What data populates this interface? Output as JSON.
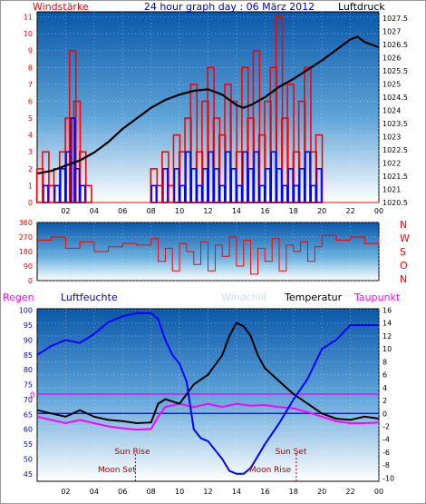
{
  "header": {
    "left_label": "Windstärke",
    "title": "24 hour graph day : 06 März 2012",
    "right_label": "Luftdruck"
  },
  "colors": {
    "wind": "#ff0000",
    "gust": "#0000ff",
    "pressure": "#000000",
    "direction": "#ff0000",
    "humidity": "#0000ff",
    "temperature": "#000000",
    "dewpoint": "#ff00ff",
    "windchill": "#c8e0ff",
    "rain": "#ff00ff",
    "zero_line": "#0000cc",
    "sun_label": "#aa0000"
  },
  "labels": {
    "regen": "Regen",
    "luftfeuchte": "Luftfeuchte",
    "windchill": "Windchill",
    "temperatur": "Temperatur",
    "taupunkt": "Taupunkt",
    "sun_rise": "Sun Rise",
    "sun_set": "Sun Set",
    "moon_set_1": "Moon Set",
    "moon_set_2": "Moon Rise",
    "rain_zero": "0",
    "dir_letters": [
      "N",
      "W",
      "S",
      "O",
      "N"
    ]
  },
  "chart_data": [
    {
      "type": "bar",
      "name": "wind-pressure",
      "x_ticks": [
        "02",
        "04",
        "06",
        "08",
        "10",
        "12",
        "14",
        "16",
        "18",
        "20",
        "22",
        "00"
      ],
      "y_left_ticks": [
        0,
        1,
        2,
        3,
        4,
        5,
        6,
        7,
        8,
        9,
        10,
        11
      ],
      "y_right_ticks": [
        "1020.5",
        "1021",
        "1021.5",
        "1022",
        "1022.5",
        "1023",
        "1023.5",
        "1024",
        "1024.5",
        "1025",
        "1025.5",
        "1026",
        "1026.5",
        "1027",
        "1027.5"
      ],
      "ylim_left": [
        0,
        11.3
      ],
      "ylim_right": [
        1020.5,
        1027.75
      ],
      "xlim": [
        0,
        24
      ],
      "pressure": {
        "x": [
          0,
          1,
          2,
          3,
          4,
          5,
          6,
          7,
          8,
          9,
          10,
          11,
          12,
          13,
          14,
          14.5,
          15,
          16,
          17,
          18,
          19,
          20,
          21,
          22,
          22.5,
          23,
          24
        ],
        "y": [
          1021.6,
          1021.7,
          1021.9,
          1022.1,
          1022.4,
          1022.8,
          1023.3,
          1023.7,
          1024.1,
          1024.4,
          1024.6,
          1024.75,
          1024.8,
          1024.6,
          1024.2,
          1024.1,
          1024.2,
          1024.5,
          1024.9,
          1025.2,
          1025.55,
          1025.9,
          1026.3,
          1026.7,
          1026.8,
          1026.6,
          1026.4
        ]
      },
      "wind_avg": {
        "x": [
          0.2,
          0.6,
          1,
          1.4,
          1.8,
          2.2,
          2.5,
          2.8,
          3.2,
          3.6,
          4.5,
          5.5,
          6.5,
          7.5,
          8.2,
          8.6,
          9.0,
          9.4,
          9.8,
          10.2,
          10.6,
          11.0,
          11.4,
          11.8,
          12.2,
          12.6,
          13.0,
          13.4,
          13.8,
          14.2,
          14.6,
          15.0,
          15.4,
          15.8,
          16.2,
          16.6,
          17.0,
          17.4,
          17.8,
          18.2,
          18.6,
          19.0,
          19.4,
          19.8,
          20.2,
          21,
          22,
          23
        ],
        "y": [
          2,
          3,
          1,
          2,
          3,
          5,
          9,
          6,
          3,
          1,
          0,
          0,
          0,
          0,
          2,
          1,
          3,
          1,
          4,
          3,
          5,
          7,
          3,
          6,
          8,
          5,
          4,
          7,
          6,
          3,
          8,
          5,
          9,
          4,
          6,
          8,
          11,
          5,
          7,
          3,
          6,
          8,
          3,
          4,
          0,
          0,
          0,
          0
        ]
      },
      "wind_gust": {
        "x": [
          0.2,
          0.6,
          1,
          1.4,
          1.8,
          2.2,
          2.5,
          2.8,
          3.2,
          3.6,
          4.5,
          5.5,
          6.5,
          7.5,
          8.2,
          8.6,
          9.0,
          9.4,
          9.8,
          10.2,
          10.6,
          11.0,
          11.4,
          11.8,
          12.2,
          12.6,
          13.0,
          13.4,
          13.8,
          14.2,
          14.6,
          15.0,
          15.4,
          15.8,
          16.2,
          16.6,
          17.0,
          17.4,
          17.8,
          18.2,
          18.6,
          19.0,
          19.4,
          19.8,
          20.2,
          21,
          22,
          23
        ],
        "y": [
          0,
          1,
          0,
          1,
          2,
          3,
          5,
          2,
          1,
          0,
          0,
          0,
          0,
          0,
          1,
          0,
          2,
          0,
          2,
          1,
          3,
          2,
          1,
          2,
          3,
          2,
          1,
          3,
          2,
          1,
          3,
          2,
          3,
          1,
          2,
          3,
          2,
          1,
          2,
          1,
          2,
          3,
          1,
          2,
          0,
          0,
          0,
          0
        ]
      }
    },
    {
      "type": "line",
      "name": "wind-direction",
      "y_ticks": [
        "360",
        "270",
        "180",
        "90",
        "0"
      ],
      "ylim": [
        0,
        360
      ],
      "x": [
        0,
        1,
        2,
        3,
        4,
        5,
        6,
        7,
        8,
        8.5,
        9,
        9.5,
        10,
        10.5,
        11,
        11.5,
        12,
        12.5,
        13,
        13.5,
        14,
        14.5,
        15,
        15.5,
        16,
        16.5,
        17,
        17.5,
        18,
        18.5,
        19,
        19.5,
        20,
        21,
        22,
        23,
        24
      ],
      "y": [
        250,
        270,
        200,
        240,
        180,
        210,
        230,
        220,
        260,
        120,
        200,
        60,
        230,
        180,
        100,
        240,
        60,
        220,
        150,
        270,
        90,
        250,
        40,
        200,
        120,
        260,
        60,
        220,
        180,
        240,
        120,
        210,
        280,
        250,
        270,
        230,
        270
      ]
    },
    {
      "type": "line",
      "name": "humidity-temperature",
      "y_left_ticks": [
        45,
        50,
        55,
        60,
        65,
        70,
        75,
        80,
        85,
        90,
        95,
        100
      ],
      "y_right_ticks": [
        -10,
        -8,
        -6,
        -4,
        -2,
        0,
        2,
        4,
        6,
        8,
        10,
        12,
        14,
        16
      ],
      "ylim_left": [
        42.5,
        100.5
      ],
      "ylim_right": [
        -10.5,
        16.2
      ],
      "humidity": {
        "x": [
          0,
          1,
          2,
          3,
          4,
          5,
          6,
          7,
          8,
          8.5,
          9,
          9.5,
          10,
          10.5,
          11,
          11.5,
          12,
          13,
          13.5,
          14,
          14.5,
          15,
          15.5,
          16,
          17,
          18,
          19,
          20,
          21,
          22,
          23,
          24
        ],
        "y": [
          85,
          88,
          90,
          89,
          92,
          96,
          98,
          99,
          99,
          97,
          90,
          85,
          82,
          76,
          60,
          57,
          56,
          50,
          46,
          45,
          45,
          47,
          51,
          55,
          62,
          70,
          77,
          87,
          90,
          95,
          95,
          95
        ]
      },
      "temperature": {
        "x": [
          0,
          1,
          2,
          3,
          4,
          5,
          6,
          7,
          8,
          8.5,
          9,
          10,
          11,
          12,
          13,
          13.5,
          14,
          14.5,
          15,
          15.5,
          16,
          17,
          18,
          19,
          20,
          21,
          22,
          23,
          24
        ],
        "y": [
          0.5,
          0,
          -0.5,
          0.5,
          -0.5,
          -1,
          -1.2,
          -1.5,
          -1.4,
          1.5,
          2.2,
          1.5,
          4.5,
          6,
          9,
          12,
          14,
          13.5,
          12,
          9,
          7,
          5,
          3,
          1.5,
          0,
          -0.8,
          -1.0,
          -0.5,
          -0.8
        ]
      },
      "dewpoint": {
        "x": [
          0,
          1,
          2,
          3,
          4,
          5,
          6,
          7,
          8,
          8.5,
          9,
          10,
          11,
          12,
          13,
          14,
          15,
          16,
          17,
          18,
          19,
          20,
          21,
          22,
          23,
          24
        ],
        "y": [
          -0.5,
          -1,
          -1.5,
          -1.0,
          -1.5,
          -2,
          -2.3,
          -2.5,
          -2.4,
          -0.5,
          1.0,
          1.5,
          1,
          1.5,
          1,
          1.5,
          1.2,
          1.3,
          1.0,
          0.8,
          0.2,
          -0.5,
          -1.2,
          -1.5,
          -1.5,
          -1.4
        ]
      },
      "rain_zero_line": 3,
      "temp_zero_line": 0,
      "sun_rise_hour": 7.0,
      "sun_set_hour": 18.25,
      "moon_set_hour": 6.9,
      "moon_rise_hour": 18.2
    }
  ]
}
